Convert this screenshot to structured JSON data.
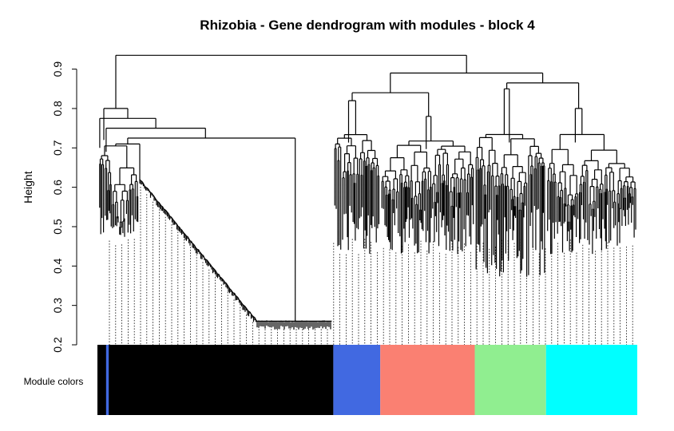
{
  "chart_data": {
    "type": "dendrogram",
    "title": "Rhizobia - Gene dendrogram with modules - block 4",
    "ylabel": "Height",
    "ylim": [
      0.2,
      0.96
    ],
    "yticks": [
      "0.2",
      "0.3",
      "0.4",
      "0.5",
      "0.6",
      "0.7",
      "0.8",
      "0.9"
    ],
    "module_label": "Module colors",
    "root_height": 0.935,
    "main_clusters": [
      {
        "name": "black",
        "color": "#000000",
        "merge_height": 0.8,
        "sub_merge_heights": [
          0.775,
          0.75,
          0.725,
          0.71
        ]
      },
      {
        "name": "right",
        "color": "#4169E1",
        "merge_height": 0.89
      }
    ],
    "subclusters": [
      {
        "module": "royalblue",
        "merge_height": 0.82
      },
      {
        "module": "salmon",
        "merge_height": 0.78
      },
      {
        "module": "lightgreen",
        "merge_height": 0.85
      },
      {
        "module": "cyan",
        "merge_height": 0.8
      }
    ],
    "black_ladder": {
      "start_height": 0.62,
      "end_height": 0.26
    },
    "module_colors": [
      {
        "module": "black",
        "color": "#000000",
        "start": 0.0,
        "end": 0.437
      },
      {
        "module": "royalblue",
        "color": "#4169E1",
        "start": 0.437,
        "end": 0.524
      },
      {
        "module": "salmon",
        "color": "#FA8072",
        "start": 0.524,
        "end": 0.699
      },
      {
        "module": "lightgreen",
        "color": "#90EE90",
        "start": 0.699,
        "end": 0.831
      },
      {
        "module": "cyan",
        "color": "#00FFFF",
        "start": 0.831,
        "end": 1.0
      }
    ],
    "module_stripe": {
      "module": "royalblue",
      "color": "#4169E1",
      "start": 0.016,
      "end": 0.021
    }
  }
}
